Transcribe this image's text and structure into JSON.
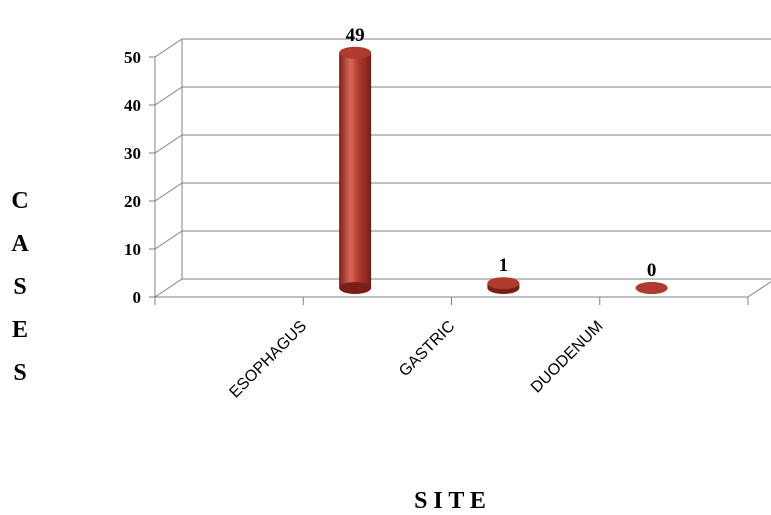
{
  "chart_data": {
    "type": "bar",
    "categories": [
      "ESOPHAGUS",
      "GASTRIC",
      "DUODENUM"
    ],
    "values": [
      49,
      1,
      0
    ],
    "data_labels": [
      "49",
      "1",
      "0"
    ],
    "yticks": [
      "0",
      "10",
      "20",
      "30",
      "40",
      "50"
    ],
    "ylim": [
      0,
      50
    ],
    "xlabel": "S I T E",
    "ylabel_letters": [
      "C",
      "A",
      "S",
      "E",
      "S"
    ],
    "grid": true,
    "bar_shape": "cylinder",
    "colors": {
      "bar": "#b03a2e",
      "bar_dark": "#7a1f17",
      "bar_light": "#d86a5c",
      "grid": "#808080"
    }
  }
}
